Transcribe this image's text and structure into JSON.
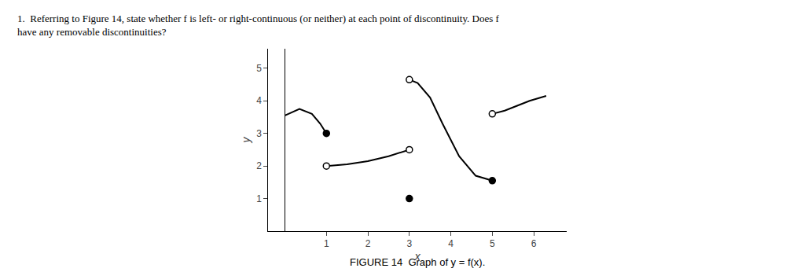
{
  "chart_data": {
    "type": "line",
    "title": "FIGURE 14  Graph of y = f(x).",
    "annotations": [
      "1.  Referring to Figure 14, state whether f is left- or right-continuous (or neither) at each point of discontinuity. Does f",
      "have any removable discontinuities?"
    ],
    "x_label": "x",
    "y_label": "y",
    "color": "#000000",
    "grid": false,
    "xlim": [
      -0.4,
      6.8
    ],
    "ylim": [
      0.0,
      5.6
    ],
    "xticks": [
      1,
      2,
      3,
      4,
      5,
      6
    ],
    "yticks": [
      1,
      2,
      3,
      4,
      5
    ],
    "series": [
      {
        "type": "line",
        "x": [
          0.0,
          0.35,
          0.65,
          0.85,
          1.0
        ],
        "values": [
          3.55,
          3.75,
          3.6,
          3.3,
          3.0
        ]
      },
      {
        "type": "line",
        "x": [
          1.0,
          1.5,
          2.0,
          2.5,
          3.0
        ],
        "values": [
          2.0,
          2.05,
          2.15,
          2.3,
          2.5
        ]
      },
      {
        "type": "line",
        "x": [
          3.0,
          3.2,
          3.5,
          3.8,
          4.2,
          4.6,
          5.0
        ],
        "values": [
          4.65,
          4.55,
          4.1,
          3.3,
          2.3,
          1.7,
          1.55
        ]
      },
      {
        "type": "line",
        "x": [
          5.0,
          5.3,
          5.6,
          5.9,
          6.3
        ],
        "values": [
          3.6,
          3.7,
          3.85,
          4.0,
          4.15
        ]
      },
      {
        "type": "scatter",
        "marker": "filled",
        "x": [
          1,
          3,
          5
        ],
        "values": [
          3.0,
          1.0,
          1.55
        ]
      },
      {
        "type": "scatter",
        "marker": "open",
        "x": [
          1,
          3,
          3,
          5
        ],
        "values": [
          2.0,
          2.5,
          4.65,
          3.6
        ]
      }
    ]
  }
}
